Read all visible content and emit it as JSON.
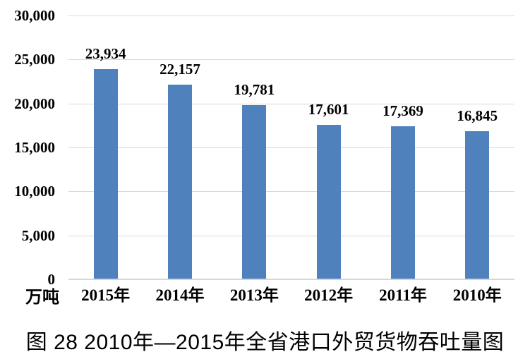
{
  "chart_data": {
    "type": "bar",
    "title": "图 28  2010年—2015年全省港口外贸货物吞吐量图",
    "unit_label": "万吨",
    "categories": [
      "2015年",
      "2014年",
      "2013年",
      "2012年",
      "2011年",
      "2010年"
    ],
    "values": [
      23934,
      22157,
      19781,
      17601,
      17369,
      16845
    ],
    "value_labels": [
      "23,934",
      "22,157",
      "19,781",
      "17,601",
      "17,369",
      "16,845"
    ],
    "y_ticks": [
      30000,
      25000,
      20000,
      15000,
      10000,
      5000,
      0
    ],
    "y_tick_labels": [
      "30,000",
      "25,000",
      "20,000",
      "15,000",
      "10,000",
      "5,000",
      "0"
    ],
    "ylim": [
      0,
      30000
    ],
    "xlabel": "",
    "ylabel": "万吨",
    "grid": true,
    "legend_position": "none",
    "bar_color": "#4F81BD",
    "gridline_color": "#D9D9D9",
    "axis_line_color": "#D6D6D6",
    "text_color": "#000000",
    "background_color": "#FFFFFF"
  },
  "caption": {
    "text": "图 28  2010年—2015年全省港口外贸货物吞吐量图"
  }
}
